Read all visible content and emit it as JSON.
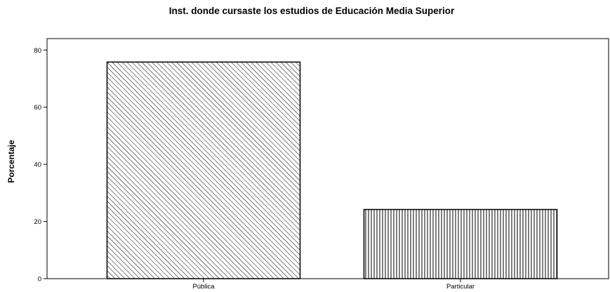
{
  "chart_data": {
    "type": "bar",
    "title": "Inst. donde cursaste los estudios de Educación Media Superior",
    "xlabel": "",
    "ylabel": "Porcentaje",
    "categories": [
      "Pública",
      "Particular"
    ],
    "values": [
      75.8,
      24.2
    ],
    "ylim": [
      0,
      84
    ],
    "yticks": [
      0,
      20,
      40,
      60,
      80
    ],
    "grid": false,
    "legend": "none",
    "bar_fills": [
      "diagonal-hatch",
      "vertical-hatch"
    ],
    "colors": {
      "bar_stroke": "#000000",
      "background": "#ffffff"
    }
  }
}
